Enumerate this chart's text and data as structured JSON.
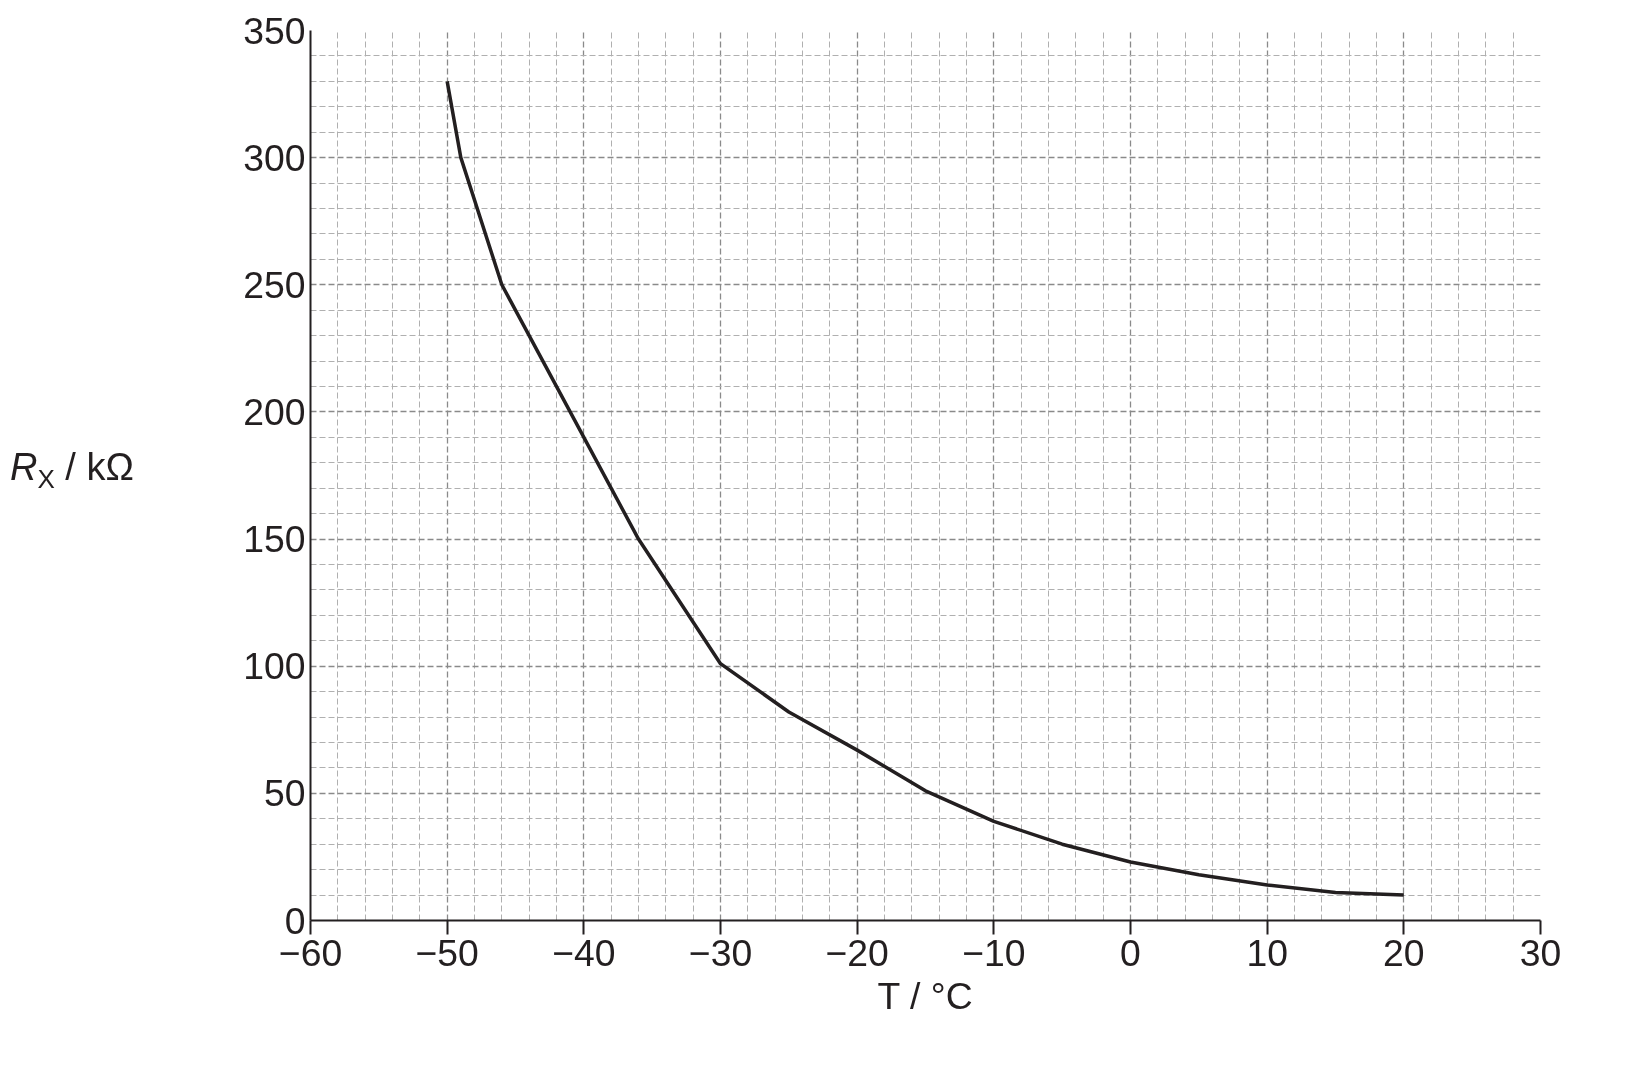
{
  "chart_data": {
    "type": "line",
    "xlabel": "T / °C",
    "ylabel": "R$_{X}$ / kΩ",
    "x": [
      -50,
      -49,
      -46,
      -41,
      -36,
      -30,
      -25,
      -20,
      -15,
      -10,
      -5,
      0,
      5,
      10,
      15,
      20
    ],
    "series": [
      {
        "color": "#231f20",
        "values": [
          330,
          300,
          250,
          200,
          150,
          101,
          82,
          67,
          51,
          39,
          30,
          23,
          18,
          14,
          11,
          10
        ]
      }
    ],
    "xlim": [
      -60,
      30
    ],
    "xticks": [
      {
        "value": -60,
        "label": "−60"
      },
      {
        "value": -50,
        "label": "−50"
      },
      {
        "value": -40,
        "label": "−40"
      },
      {
        "value": -30,
        "label": "−30"
      },
      {
        "value": -20,
        "label": "−20"
      },
      {
        "value": -10,
        "label": "−10"
      },
      0,
      10,
      20,
      30
    ],
    "ylim": [
      0,
      350
    ],
    "yticks": [
      0,
      50,
      100,
      150,
      200,
      250,
      300,
      350
    ],
    "grid": true,
    "marker": "none",
    "line_style": "solid"
  }
}
